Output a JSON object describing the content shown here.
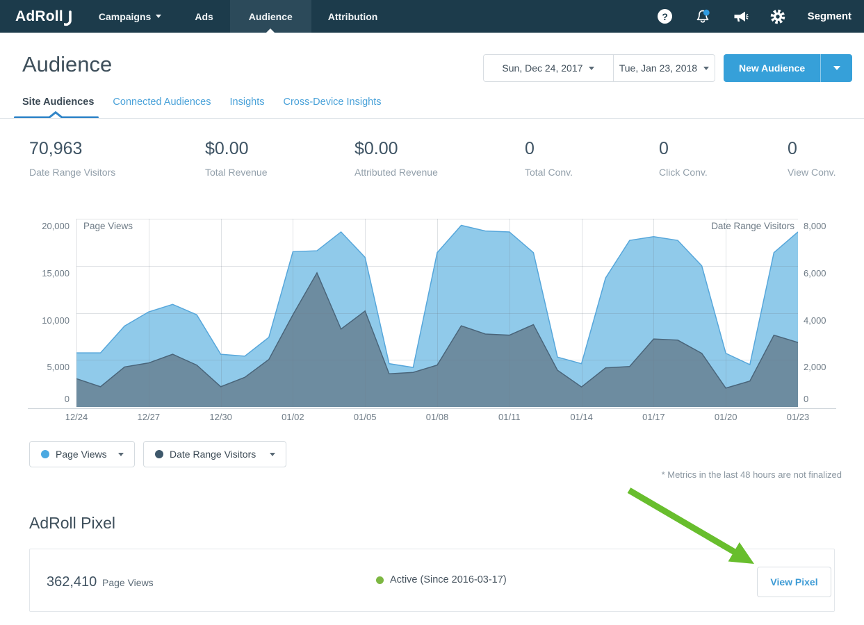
{
  "colors": {
    "navbar_bg": "#1C3B4B",
    "navbar_active_bg": "#2C4A5A",
    "accent_blue": "#36A0D9",
    "link_blue": "#4AA2D9",
    "arrow_green": "#68BE2D",
    "status_green": "#7DB742",
    "notification_dot": "#2E9BE1"
  },
  "navbar": {
    "logo_text": "AdRoll",
    "items": [
      {
        "label": "Campaigns",
        "has_caret": true,
        "active": false
      },
      {
        "label": "Ads",
        "has_caret": false,
        "active": false
      },
      {
        "label": "Audience",
        "has_caret": false,
        "active": true
      },
      {
        "label": "Attribution",
        "has_caret": false,
        "active": false
      }
    ],
    "icons": [
      "help-icon",
      "notification-bell-icon",
      "announcements-megaphone-icon",
      "settings-gear-icon"
    ],
    "account_label": "Segment"
  },
  "header": {
    "title": "Audience",
    "date_range": {
      "start": "Sun, Dec 24, 2017",
      "end": "Tue, Jan 23, 2018"
    },
    "new_audience_button": "New Audience"
  },
  "tabs": [
    {
      "label": "Site Audiences",
      "active": true
    },
    {
      "label": "Connected Audiences",
      "active": false
    },
    {
      "label": "Insights",
      "active": false
    },
    {
      "label": "Cross-Device Insights",
      "active": false
    }
  ],
  "stats": [
    {
      "value": "70,963",
      "label": "Date Range Visitors"
    },
    {
      "value": "$0.00",
      "label": "Total Revenue"
    },
    {
      "value": "$0.00",
      "label": "Attributed Revenue"
    },
    {
      "value": "0",
      "label": "Total Conv."
    },
    {
      "value": "0",
      "label": "Click Conv."
    },
    {
      "value": "0",
      "label": "View Conv."
    }
  ],
  "chart_data": {
    "type": "area",
    "x": [
      "12/24",
      "12/25",
      "12/26",
      "12/27",
      "12/28",
      "12/29",
      "12/30",
      "12/31",
      "01/01",
      "01/02",
      "01/03",
      "01/04",
      "01/05",
      "01/06",
      "01/07",
      "01/08",
      "01/09",
      "01/10",
      "01/11",
      "01/12",
      "01/13",
      "01/14",
      "01/15",
      "01/16",
      "01/17",
      "01/18",
      "01/19",
      "01/20",
      "01/21",
      "01/22",
      "01/23"
    ],
    "x_tick_labels": [
      "12/24",
      "12/27",
      "12/30",
      "01/02",
      "01/05",
      "01/08",
      "01/11",
      "01/14",
      "01/17",
      "01/20",
      "01/23"
    ],
    "left_axis": {
      "label": "Page Views",
      "max": 20000,
      "min": 0,
      "ticks": [
        20000,
        15000,
        10000,
        5000,
        0
      ],
      "tick_labels": [
        "20,000",
        "15,000",
        "10,000",
        "5,000",
        "0"
      ]
    },
    "right_axis": {
      "label": "Date Range Visitors",
      "max": 8000,
      "min": 0,
      "ticks": [
        8000,
        6000,
        4000,
        2000,
        0
      ],
      "tick_labels": [
        "8,000",
        "6,000",
        "4,000",
        "2,000",
        "0"
      ]
    },
    "grid": true,
    "legend_position": "bottom-left",
    "series": [
      {
        "name": "Page Views",
        "axis": "left",
        "fill": "#90CAEA",
        "stroke": "#57A7DB",
        "values": [
          5750,
          5750,
          8600,
          10100,
          10900,
          9800,
          5600,
          5400,
          7400,
          16500,
          16600,
          18600,
          15900,
          4600,
          4200,
          16400,
          19300,
          18700,
          18600,
          16400,
          5300,
          4600,
          13700,
          17700,
          18100,
          17700,
          15000,
          5700,
          4500,
          16400,
          18600
        ]
      },
      {
        "name": "Date Range Visitors",
        "axis": "right",
        "fill": "#6D8CA0",
        "stroke": "#4A657A",
        "values": [
          1200,
          860,
          1700,
          1870,
          2240,
          1780,
          860,
          1260,
          2020,
          3920,
          5700,
          3310,
          4080,
          1410,
          1470,
          1780,
          3450,
          3100,
          3050,
          3500,
          1560,
          850,
          1660,
          1720,
          2890,
          2840,
          2280,
          800,
          1100,
          3050,
          2740
        ]
      }
    ]
  },
  "legend": [
    {
      "label": "Page Views",
      "color": "#4BA9E1"
    },
    {
      "label": "Date Range Visitors",
      "color": "#3E586B"
    }
  ],
  "footnote": "* Metrics in the last 48 hours are not finalized",
  "pixel_section": {
    "heading": "AdRoll Pixel",
    "page_views_value": "362,410",
    "page_views_label": "Page Views",
    "status_text": "Active (Since 2016-03-17)",
    "view_pixel_button": "View Pixel"
  }
}
